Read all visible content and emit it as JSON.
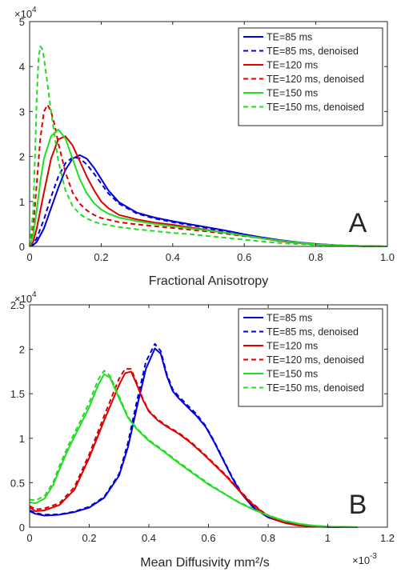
{
  "chart_data": [
    {
      "type": "line",
      "panel_label": "A",
      "xlabel": "Fractional Anisotropy",
      "ylabel": "",
      "xlim": [
        0,
        1.0
      ],
      "ylim": [
        0,
        50000
      ],
      "y_exponent_label": "×10",
      "y_exponent": "4",
      "x_ticks": [
        0,
        0.2,
        0.4,
        0.6,
        0.8,
        1.0
      ],
      "x_tick_labels": [
        "0",
        "0.2",
        "0.4",
        "0.6",
        "0.8",
        "1.0"
      ],
      "y_ticks": [
        0,
        10000,
        20000,
        30000,
        40000,
        50000
      ],
      "y_tick_labels": [
        "0",
        "1",
        "2",
        "3",
        "4",
        "5"
      ],
      "grid": false,
      "legend_position": "top-right",
      "series": [
        {
          "name": "TE=85 ms",
          "color": "#0000dd",
          "dash": "solid",
          "x": [
            0,
            0.01,
            0.02,
            0.04,
            0.06,
            0.08,
            0.1,
            0.12,
            0.14,
            0.16,
            0.18,
            0.2,
            0.22,
            0.25,
            0.3,
            0.35,
            0.4,
            0.45,
            0.5,
            0.55,
            0.6,
            0.65,
            0.7,
            0.75,
            0.8,
            0.85,
            0.9,
            0.95,
            1.0
          ],
          "y": [
            0,
            300,
            1000,
            4000,
            8500,
            13000,
            17000,
            19500,
            20300,
            19500,
            17500,
            15000,
            12500,
            9800,
            7500,
            6400,
            5600,
            4900,
            4200,
            3500,
            2700,
            2000,
            1400,
            900,
            550,
            300,
            150,
            50,
            0
          ]
        },
        {
          "name": "TE=85 ms, denoised",
          "color": "#0000dd",
          "dash": "dashed",
          "x": [
            0,
            0.01,
            0.02,
            0.04,
            0.06,
            0.08,
            0.1,
            0.12,
            0.14,
            0.16,
            0.18,
            0.2,
            0.22,
            0.25,
            0.3,
            0.35,
            0.4,
            0.45,
            0.5,
            0.55,
            0.6,
            0.65,
            0.7,
            0.75,
            0.8,
            0.85,
            0.9,
            0.95,
            1.0
          ],
          "y": [
            0,
            500,
            1800,
            6000,
            11000,
            15500,
            18500,
            19800,
            19600,
            18200,
            16200,
            14000,
            11800,
            9500,
            7300,
            6200,
            5400,
            4700,
            4000,
            3300,
            2600,
            1900,
            1300,
            850,
            500,
            280,
            130,
            40,
            0
          ]
        },
        {
          "name": "TE=120 ms",
          "color": "#dd0000",
          "dash": "solid",
          "x": [
            0,
            0.01,
            0.02,
            0.04,
            0.06,
            0.08,
            0.1,
            0.12,
            0.14,
            0.16,
            0.18,
            0.2,
            0.22,
            0.25,
            0.3,
            0.35,
            0.4,
            0.45,
            0.5,
            0.55,
            0.6,
            0.65,
            0.7,
            0.75,
            0.8,
            0.85,
            0.9,
            0.95,
            1.0
          ],
          "y": [
            0,
            1000,
            4000,
            12000,
            19500,
            23800,
            24500,
            22500,
            19000,
            15500,
            12500,
            10000,
            8500,
            7000,
            6000,
            5300,
            4800,
            4200,
            3600,
            3000,
            2400,
            1800,
            1200,
            800,
            450,
            250,
            120,
            40,
            0
          ]
        },
        {
          "name": "TE=120 ms, denoised",
          "color": "#dd0000",
          "dash": "dashed",
          "x": [
            0,
            0.01,
            0.02,
            0.03,
            0.04,
            0.05,
            0.06,
            0.07,
            0.08,
            0.1,
            0.12,
            0.14,
            0.16,
            0.18,
            0.2,
            0.25,
            0.3,
            0.35,
            0.4,
            0.45,
            0.5,
            0.55,
            0.6,
            0.65,
            0.7,
            0.75,
            0.8,
            0.85,
            0.9,
            0.95,
            1.0
          ],
          "y": [
            0,
            4000,
            14000,
            24000,
            30000,
            31500,
            30000,
            27000,
            23000,
            16500,
            12000,
            9500,
            8000,
            7000,
            6300,
            5400,
            4900,
            4500,
            4100,
            3700,
            3300,
            2800,
            2300,
            1800,
            1200,
            800,
            450,
            250,
            100,
            30,
            0
          ]
        },
        {
          "name": "TE=150 ms",
          "color": "#22dd22",
          "dash": "solid",
          "x": [
            0,
            0.01,
            0.02,
            0.03,
            0.04,
            0.06,
            0.08,
            0.1,
            0.12,
            0.14,
            0.16,
            0.18,
            0.2,
            0.22,
            0.25,
            0.3,
            0.35,
            0.4,
            0.45,
            0.5,
            0.55,
            0.6,
            0.65,
            0.7,
            0.75,
            0.8,
            0.85,
            0.9,
            0.95,
            1.0
          ],
          "y": [
            0,
            2500,
            8000,
            14500,
            19500,
            24500,
            26000,
            24000,
            19500,
            15000,
            11800,
            9600,
            8200,
            7300,
            6400,
            5600,
            5000,
            4500,
            4000,
            3500,
            3000,
            2400,
            1800,
            1300,
            850,
            500,
            280,
            130,
            40,
            0
          ]
        },
        {
          "name": "TE=150 ms, denoised",
          "color": "#22dd22",
          "dash": "dashed",
          "x": [
            0,
            0.01,
            0.015,
            0.02,
            0.025,
            0.03,
            0.035,
            0.04,
            0.05,
            0.06,
            0.07,
            0.08,
            0.1,
            0.12,
            0.14,
            0.16,
            0.18,
            0.2,
            0.25,
            0.3,
            0.35,
            0.4,
            0.45,
            0.5,
            0.55,
            0.6,
            0.65,
            0.7,
            0.75,
            0.8,
            0.85,
            0.9,
            0.95,
            1.0
          ],
          "y": [
            0,
            8000,
            20000,
            33000,
            42000,
            44500,
            44000,
            42000,
            36000,
            30000,
            24500,
            19000,
            12500,
            9000,
            7200,
            6200,
            5500,
            5000,
            4300,
            3800,
            3400,
            3000,
            2700,
            2300,
            1900,
            1500,
            1100,
            750,
            500,
            300,
            150,
            70,
            20,
            0
          ]
        }
      ]
    },
    {
      "type": "line",
      "panel_label": "B",
      "xlabel": "Mean Diffusivity mm²/s",
      "ylabel": "",
      "xlim": [
        0,
        0.0012
      ],
      "ylim": [
        0,
        25000
      ],
      "y_exponent_label": "×10",
      "y_exponent": "4",
      "x_exponent_label": "×10",
      "x_exponent": "-3",
      "x_ticks": [
        0,
        0.0002,
        0.0004,
        0.0006,
        0.0008,
        0.001,
        0.0012
      ],
      "x_tick_labels": [
        "0",
        "0.2",
        "0.4",
        "0.6",
        "0.8",
        "1",
        "1.2"
      ],
      "y_ticks": [
        0,
        5000,
        10000,
        15000,
        20000,
        25000
      ],
      "y_tick_labels": [
        "0",
        "0.5",
        "1",
        "1.5",
        "2",
        "2.5"
      ],
      "grid": false,
      "legend_position": "top-right",
      "series": [
        {
          "name": "TE=85 ms",
          "color": "#0000dd",
          "dash": "solid",
          "x": [
            0,
            2e-05,
            5e-05,
            0.0001,
            0.00015,
            0.0002,
            0.00025,
            0.0003,
            0.00033,
            0.00036,
            0.00039,
            0.00042,
            0.00044,
            0.00046,
            0.00048,
            0.0005,
            0.00053,
            0.00056,
            0.00059,
            0.00062,
            0.00065,
            0.00068,
            0.00071,
            0.00075,
            0.0008,
            0.00085,
            0.0009,
            0.00095,
            0.001,
            0.00105,
            0.0011
          ],
          "y": [
            1800,
            1500,
            1300,
            1400,
            1700,
            2200,
            3300,
            5800,
            9000,
            13500,
            17800,
            20100,
            19500,
            17000,
            15300,
            14500,
            13500,
            12500,
            11300,
            9500,
            7500,
            5500,
            3800,
            2200,
            1100,
            550,
            250,
            100,
            40,
            10,
            0
          ]
        },
        {
          "name": "TE=85 ms, denoised",
          "color": "#0000dd",
          "dash": "dashed",
          "x": [
            0,
            2e-05,
            5e-05,
            0.0001,
            0.00015,
            0.0002,
            0.00025,
            0.0003,
            0.00033,
            0.00036,
            0.00039,
            0.00042,
            0.00044,
            0.00046,
            0.00048,
            0.0005,
            0.00053,
            0.00056,
            0.00059,
            0.00062,
            0.00065,
            0.00068,
            0.00071,
            0.00075,
            0.0008,
            0.00085,
            0.0009,
            0.00095,
            0.001,
            0.00105,
            0.0011
          ],
          "y": [
            1900,
            1600,
            1400,
            1450,
            1750,
            2300,
            3400,
            6000,
            9500,
            14200,
            18600,
            20600,
            19800,
            17200,
            15500,
            14700,
            13700,
            12700,
            11400,
            9600,
            7600,
            5600,
            3900,
            2300,
            1150,
            580,
            260,
            110,
            40,
            10,
            0
          ]
        },
        {
          "name": "TE=120 ms",
          "color": "#dd0000",
          "dash": "solid",
          "x": [
            0,
            2e-05,
            5e-05,
            0.0001,
            0.00015,
            0.0002,
            0.00025,
            0.0003,
            0.00032,
            0.00034,
            0.00036,
            0.00038,
            0.0004,
            0.00043,
            0.00046,
            0.0005,
            0.00054,
            0.00058,
            0.00062,
            0.00066,
            0.0007,
            0.00074,
            0.00078,
            0.00082,
            0.00086,
            0.0009,
            0.00095,
            0.001,
            0.00105,
            0.0011
          ],
          "y": [
            2200,
            1800,
            1900,
            2500,
            4200,
            7800,
            12000,
            16000,
            17300,
            17500,
            16000,
            14300,
            13000,
            12000,
            11300,
            10500,
            9500,
            8300,
            7000,
            5700,
            4200,
            2800,
            1700,
            900,
            450,
            200,
            80,
            30,
            10,
            0
          ]
        },
        {
          "name": "TE=120 ms, denoised",
          "color": "#dd0000",
          "dash": "dashed",
          "x": [
            0,
            2e-05,
            5e-05,
            0.0001,
            0.00015,
            0.0002,
            0.00025,
            0.0003,
            0.00032,
            0.00034,
            0.00036,
            0.00038,
            0.0004,
            0.00043,
            0.00046,
            0.0005,
            0.00054,
            0.00058,
            0.00062,
            0.00066,
            0.0007,
            0.00074,
            0.00078,
            0.00082,
            0.00086,
            0.0009,
            0.00095,
            0.001,
            0.00105,
            0.0011
          ],
          "y": [
            2400,
            2000,
            2100,
            2700,
            4500,
            8200,
            12500,
            16700,
            17800,
            17800,
            16200,
            14400,
            13100,
            12100,
            11400,
            10600,
            9600,
            8400,
            7100,
            5800,
            4300,
            2900,
            1750,
            950,
            480,
            210,
            90,
            30,
            10,
            0
          ]
        },
        {
          "name": "TE=150 ms",
          "color": "#22dd22",
          "dash": "solid",
          "x": [
            0,
            2e-05,
            5e-05,
            8e-05,
            0.0001,
            0.00013,
            0.00016,
            0.0002,
            0.00023,
            0.00025,
            0.00027,
            0.0003,
            0.00033,
            0.00036,
            0.0004,
            0.00045,
            0.0005,
            0.00055,
            0.0006,
            0.00065,
            0.0007,
            0.00075,
            0.0008,
            0.00085,
            0.0009,
            0.00095,
            0.001,
            0.00105,
            0.0011
          ],
          "y": [
            2800,
            2700,
            3200,
            4800,
            6500,
            8800,
            10800,
            13500,
            16000,
            17200,
            16800,
            14500,
            12300,
            11000,
            9700,
            8500,
            7200,
            6000,
            4800,
            3800,
            2800,
            2000,
            1300,
            750,
            400,
            180,
            70,
            20,
            0
          ]
        },
        {
          "name": "TE=150 ms, denoised",
          "color": "#22dd22",
          "dash": "dashed",
          "x": [
            0,
            2e-05,
            5e-05,
            8e-05,
            0.0001,
            0.00013,
            0.00016,
            0.0002,
            0.00023,
            0.00025,
            0.00027,
            0.0003,
            0.00033,
            0.00036,
            0.0004,
            0.00045,
            0.0005,
            0.00055,
            0.0006,
            0.00065,
            0.0007,
            0.00075,
            0.0008,
            0.00085,
            0.0009,
            0.00095,
            0.001,
            0.00105,
            0.0011
          ],
          "y": [
            3100,
            3000,
            3500,
            5100,
            6900,
            9200,
            11200,
            14000,
            16600,
            17600,
            17000,
            14700,
            12400,
            11100,
            9800,
            8600,
            7300,
            6100,
            4900,
            3850,
            2850,
            2050,
            1350,
            780,
            410,
            190,
            70,
            20,
            0
          ]
        }
      ]
    }
  ]
}
